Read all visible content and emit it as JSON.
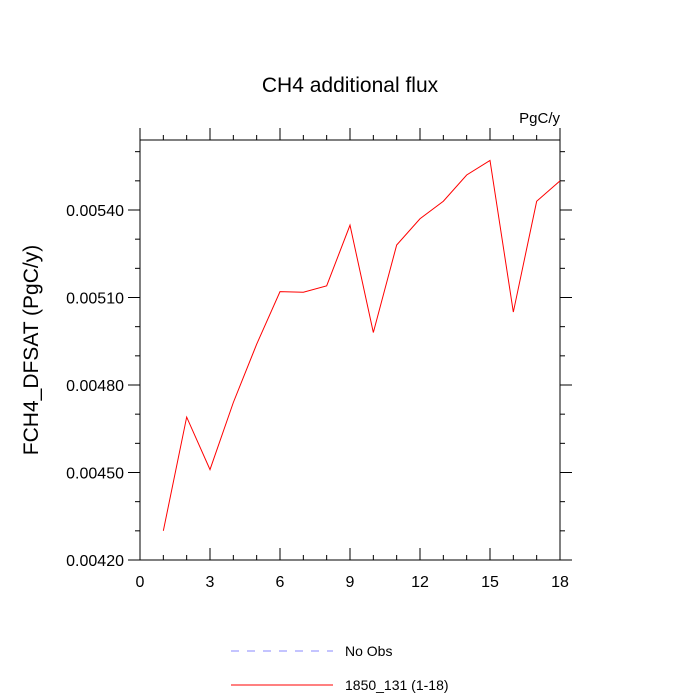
{
  "chart_data": {
    "type": "line",
    "title": "CH4 additional flux",
    "unit_label": "PgC/y",
    "xlabel": "",
    "ylabel": "FCH4_DFSAT  (PgC/y)",
    "xlim": [
      0,
      18
    ],
    "ylim": [
      0.0042,
      0.00564
    ],
    "x_ticks": [
      0,
      3,
      6,
      9,
      12,
      15,
      18
    ],
    "x_tick_labels": [
      "0",
      "3",
      "6",
      "9",
      "12",
      "15",
      "18"
    ],
    "y_ticks": [
      0.0042,
      0.0045,
      0.0048,
      0.0051,
      0.0054
    ],
    "y_tick_labels": [
      "0.00420",
      "0.00450",
      "0.00480",
      "0.00510",
      "0.00540"
    ],
    "grid": false,
    "legend_position": "bottom",
    "series": [
      {
        "name": "No Obs",
        "color": "#8888ff",
        "dash": "dashed",
        "x": [],
        "y": []
      },
      {
        "name": "1850_131 (1-18)",
        "color": "#ff0000",
        "dash": "solid",
        "x": [
          1,
          2,
          3,
          4,
          5,
          6,
          7,
          8,
          9,
          10,
          11,
          12,
          13,
          14,
          15,
          16,
          17,
          18
        ],
        "y": [
          0.0043,
          0.00469,
          0.00451,
          0.00474,
          0.00494,
          0.00512,
          0.005118,
          0.00514,
          0.005348,
          0.00498,
          0.00528,
          0.00537,
          0.00543,
          0.00552,
          0.00557,
          0.00505,
          0.00543,
          0.0055
        ]
      }
    ]
  }
}
